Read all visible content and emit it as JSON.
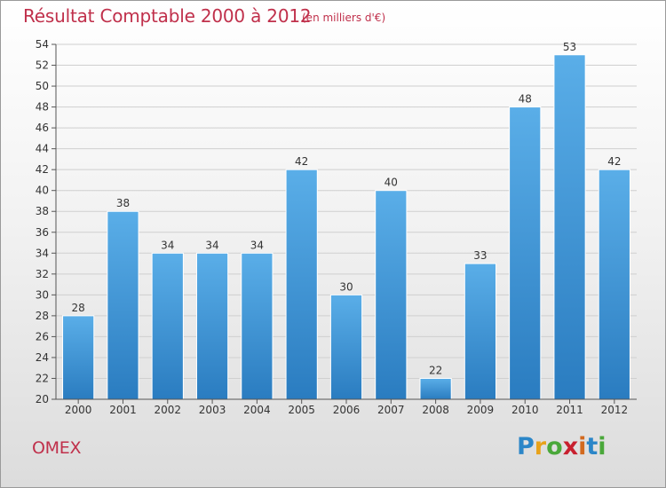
{
  "header": {
    "title": "Résultat Comptable 2000 à 2012",
    "unit": "(en milliers d'€)"
  },
  "footer": {
    "commune": "OMEX",
    "logo_letters": [
      "P",
      "r",
      "o",
      "x",
      "i",
      "t",
      "i"
    ],
    "logo_colors": [
      "#2b86c8",
      "#e8a21a",
      "#4aa83a",
      "#c8202f",
      "#d2691e",
      "#2b86c8",
      "#4aa83a"
    ]
  },
  "chart_data": {
    "type": "bar",
    "title": "Résultat Comptable 2000 à 2012",
    "xlabel": "",
    "ylabel": "",
    "ylim": [
      20,
      54
    ],
    "ytick_step": 2,
    "grid": true,
    "categories": [
      "2000",
      "2001",
      "2002",
      "2003",
      "2004",
      "2005",
      "2006",
      "2007",
      "2008",
      "2009",
      "2010",
      "2011",
      "2012"
    ],
    "values": [
      28,
      38,
      34,
      34,
      34,
      42,
      30,
      40,
      22,
      33,
      48,
      53,
      42
    ],
    "bar_color_top": "#5aaee8",
    "bar_color_bottom": "#2a7cc0"
  }
}
